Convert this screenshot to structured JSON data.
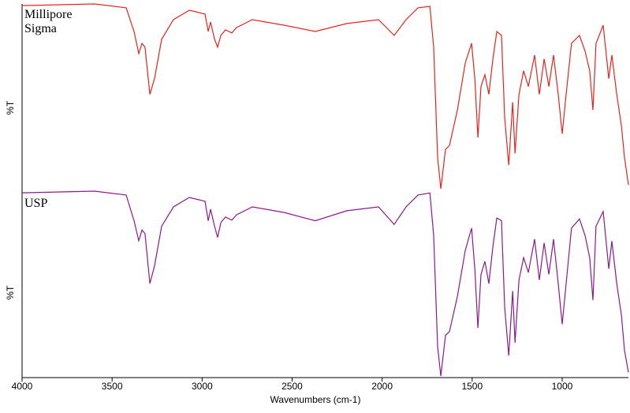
{
  "chart_data": {
    "type": "line",
    "xlabel": "Wavenumbers (cm-1)",
    "ylabel": "%T",
    "x": [
      4000,
      3597,
      3422,
      3378,
      3352,
      3334,
      3317,
      3290,
      3264,
      3225,
      3159,
      3071,
      2984,
      2966,
      2953,
      2931,
      2914,
      2896,
      2870,
      2835,
      2809,
      2721,
      2546,
      2371,
      2196,
      2020,
      1933,
      1867,
      1801,
      1735,
      1714,
      1692,
      1674,
      1648,
      1626,
      1582,
      1538,
      1503,
      1485,
      1468,
      1451,
      1429,
      1407,
      1385,
      1363,
      1337,
      1319,
      1297,
      1275,
      1262,
      1240,
      1214,
      1188,
      1153,
      1127,
      1100,
      1074,
      1048,
      1022,
      1000,
      978,
      948,
      904,
      873,
      847,
      829,
      812,
      772,
      741,
      724,
      697,
      671,
      654,
      632
    ],
    "xlim": [
      4000,
      632
    ],
    "xticks": [
      4000,
      3500,
      3000,
      2500,
      2000,
      1500,
      1000
    ],
    "ylim": [
      0,
      100
    ],
    "series": [
      {
        "name": "Millipore Sigma",
        "color": "#e8231f",
        "values": [
          99.1,
          100,
          97.9,
          85.1,
          73.2,
          78.7,
          76.6,
          51.1,
          59.6,
          80.9,
          91.5,
          96.6,
          94.5,
          85.1,
          90.2,
          80.9,
          76.6,
          83,
          86,
          84.3,
          87.2,
          91.5,
          88.5,
          85.1,
          89.4,
          91.5,
          83,
          91.5,
          97.9,
          98.7,
          76.6,
          17,
          0,
          21.3,
          23.4,
          42.6,
          68.1,
          78.7,
          59.6,
          27.7,
          55.3,
          61.7,
          51.1,
          70.2,
          85.1,
          83,
          38.3,
          12.8,
          46.8,
          19.1,
          51.1,
          63.8,
          55.3,
          72.3,
          51.1,
          70.2,
          55.3,
          72.3,
          51.1,
          29.8,
          51.1,
          78.7,
          83,
          74.5,
          63.8,
          42.6,
          78.7,
          88.5,
          59.6,
          72.3,
          51.1,
          34,
          17,
          2.1
        ]
      },
      {
        "name": "USP",
        "color": "#8b1a8b",
        "values": [
          99.1,
          100,
          97.9,
          84,
          73.2,
          79,
          77,
          50,
          59.6,
          81,
          91.5,
          96.6,
          94.5,
          84,
          90.2,
          81,
          75,
          83,
          86,
          84.3,
          87.2,
          91.5,
          88.5,
          84,
          89.4,
          91.5,
          82,
          91.5,
          97.9,
          99,
          76,
          16,
          0,
          22,
          24,
          43,
          68,
          80,
          58,
          26,
          55,
          62,
          50,
          70,
          85.5,
          84,
          37,
          11,
          46,
          18,
          52,
          64,
          56,
          74,
          52,
          72,
          55,
          74,
          50,
          28,
          50,
          80,
          85,
          76,
          64,
          41,
          81,
          89,
          58,
          73,
          50,
          33,
          14,
          2
        ]
      }
    ]
  }
}
